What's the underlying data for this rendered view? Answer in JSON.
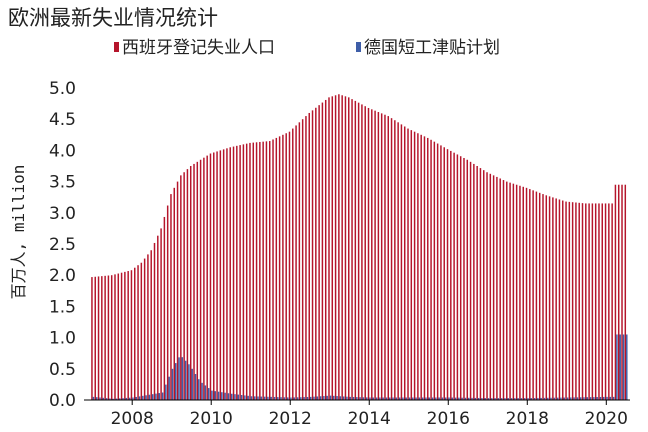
{
  "title": "欧洲最新失业情况统计",
  "chart_data": {
    "type": "bar",
    "ylabel": "百万人, million",
    "ylim": [
      0,
      5.0
    ],
    "yticks": [
      "0.0",
      "0.5",
      "1.0",
      "1.5",
      "2.0",
      "2.5",
      "3.0",
      "3.5",
      "4.0",
      "4.5",
      "5.0"
    ],
    "xticks": [
      "2008",
      "2010",
      "2012",
      "2014",
      "2016",
      "2018",
      "2020"
    ],
    "xtick_values": [
      2008,
      2010,
      2012,
      2014,
      2016,
      2018,
      2020
    ],
    "x_start": 2007.0,
    "x_end": 2020.5,
    "legend_position": "top",
    "grid": false,
    "series": [
      {
        "name": "西班牙登记失业人口",
        "color": "#b5152b",
        "keypoints": [
          [
            2007.0,
            1.97
          ],
          [
            2007.5,
            2.0
          ],
          [
            2008.0,
            2.08
          ],
          [
            2008.25,
            2.2
          ],
          [
            2008.5,
            2.4
          ],
          [
            2008.75,
            2.75
          ],
          [
            2009.0,
            3.3
          ],
          [
            2009.25,
            3.6
          ],
          [
            2009.5,
            3.75
          ],
          [
            2009.75,
            3.85
          ],
          [
            2010.0,
            3.95
          ],
          [
            2010.5,
            4.05
          ],
          [
            2011.0,
            4.12
          ],
          [
            2011.5,
            4.15
          ],
          [
            2012.0,
            4.3
          ],
          [
            2012.5,
            4.6
          ],
          [
            2013.0,
            4.85
          ],
          [
            2013.25,
            4.9
          ],
          [
            2013.5,
            4.85
          ],
          [
            2014.0,
            4.68
          ],
          [
            2014.5,
            4.55
          ],
          [
            2015.0,
            4.35
          ],
          [
            2015.5,
            4.2
          ],
          [
            2016.0,
            4.02
          ],
          [
            2016.5,
            3.85
          ],
          [
            2017.0,
            3.65
          ],
          [
            2017.5,
            3.5
          ],
          [
            2018.0,
            3.4
          ],
          [
            2018.5,
            3.28
          ],
          [
            2019.0,
            3.18
          ],
          [
            2019.5,
            3.15
          ],
          [
            2020.0,
            3.15
          ],
          [
            2020.2,
            3.15
          ],
          [
            2020.25,
            3.45
          ]
        ]
      },
      {
        "name": "德国短工津贴计划",
        "color": "#3e5ea8",
        "keypoints": [
          [
            2007.0,
            0.05
          ],
          [
            2007.5,
            0.02
          ],
          [
            2008.0,
            0.04
          ],
          [
            2008.75,
            0.12
          ],
          [
            2009.0,
            0.5
          ],
          [
            2009.2,
            0.72
          ],
          [
            2009.45,
            0.55
          ],
          [
            2009.7,
            0.3
          ],
          [
            2010.0,
            0.15
          ],
          [
            2010.5,
            0.1
          ],
          [
            2011.0,
            0.06
          ],
          [
            2011.5,
            0.05
          ],
          [
            2012.0,
            0.04
          ],
          [
            2012.5,
            0.05
          ],
          [
            2013.0,
            0.07
          ],
          [
            2013.5,
            0.05
          ],
          [
            2014.0,
            0.04
          ],
          [
            2015.0,
            0.04
          ],
          [
            2016.0,
            0.04
          ],
          [
            2017.0,
            0.03
          ],
          [
            2018.0,
            0.03
          ],
          [
            2019.0,
            0.04
          ],
          [
            2020.0,
            0.05
          ],
          [
            2020.2,
            0.05
          ],
          [
            2020.25,
            1.05
          ]
        ]
      }
    ]
  }
}
